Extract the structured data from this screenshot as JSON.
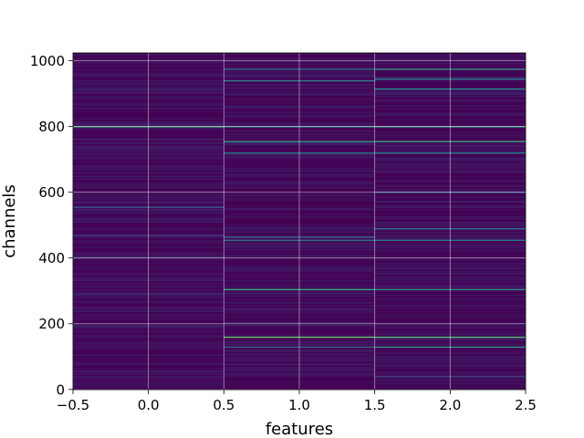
{
  "chart_data": {
    "type": "heatmap",
    "title": "",
    "xlabel": "features",
    "ylabel": "channels",
    "x_ticks": [
      -0.5,
      0.0,
      0.5,
      1.0,
      1.5,
      2.0,
      2.5
    ],
    "x_tick_labels": [
      "−0.5",
      "0.0",
      "0.5",
      "1.0",
      "1.5",
      "2.0",
      "2.5"
    ],
    "y_ticks": [
      0,
      200,
      400,
      600,
      800,
      1000
    ],
    "y_tick_labels": [
      "0",
      "200",
      "400",
      "600",
      "800",
      "1000"
    ],
    "xlim": [
      -0.5,
      2.5
    ],
    "ylim": [
      1023.5,
      -0.5
    ],
    "grid": true,
    "colormap": "viridis",
    "base_color": "#440154",
    "columns": [
      0,
      1,
      2
    ],
    "rows": 1024,
    "highlight_rows": [
      {
        "column": 0,
        "row": 800,
        "level": 0.65
      },
      {
        "column": 0,
        "row": 555,
        "level": 0.25
      },
      {
        "column": 0,
        "row": 470,
        "level": 0.2
      },
      {
        "column": 1,
        "row": 130,
        "level": 0.35
      },
      {
        "column": 1,
        "row": 160,
        "level": 0.75
      },
      {
        "column": 1,
        "row": 305,
        "level": 0.6
      },
      {
        "column": 1,
        "row": 455,
        "level": 0.4
      },
      {
        "column": 1,
        "row": 465,
        "level": 0.35
      },
      {
        "column": 1,
        "row": 720,
        "level": 0.45
      },
      {
        "column": 1,
        "row": 755,
        "level": 0.55
      },
      {
        "column": 1,
        "row": 800,
        "level": 0.5
      },
      {
        "column": 1,
        "row": 940,
        "level": 0.45
      },
      {
        "column": 1,
        "row": 975,
        "level": 0.35
      },
      {
        "column": 2,
        "row": 40,
        "level": 0.2
      },
      {
        "column": 2,
        "row": 130,
        "level": 0.55
      },
      {
        "column": 2,
        "row": 160,
        "level": 0.7
      },
      {
        "column": 2,
        "row": 305,
        "level": 0.55
      },
      {
        "column": 2,
        "row": 455,
        "level": 0.45
      },
      {
        "column": 2,
        "row": 490,
        "level": 0.4
      },
      {
        "column": 2,
        "row": 600,
        "level": 0.3
      },
      {
        "column": 2,
        "row": 720,
        "level": 0.45
      },
      {
        "column": 2,
        "row": 755,
        "level": 0.6
      },
      {
        "column": 2,
        "row": 800,
        "level": 0.55
      },
      {
        "column": 2,
        "row": 915,
        "level": 0.5
      },
      {
        "column": 2,
        "row": 945,
        "level": 0.4
      },
      {
        "column": 2,
        "row": 975,
        "level": 0.55
      }
    ]
  }
}
